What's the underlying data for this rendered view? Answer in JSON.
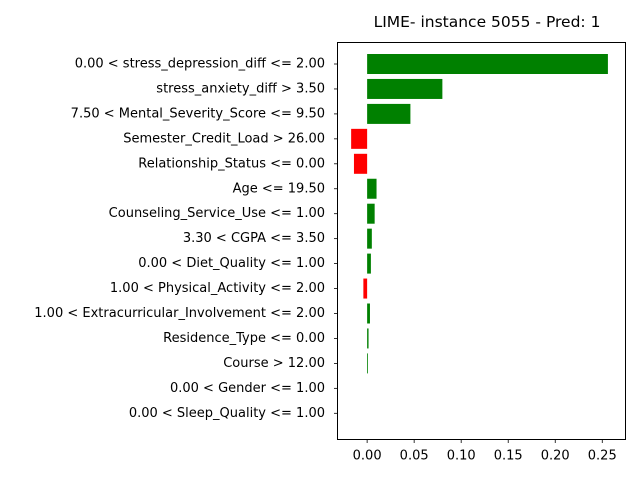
{
  "chart_data": {
    "type": "bar",
    "orientation": "horizontal",
    "title": "LIME- instance 5055 - Pred: 1",
    "xlabel": "",
    "ylabel": "",
    "xlim": [
      -0.0315,
      0.2747
    ],
    "x_ticks": [
      0.0,
      0.05,
      0.1,
      0.15,
      0.2,
      0.25
    ],
    "x_tick_labels": [
      "0.00",
      "0.05",
      "0.10",
      "0.15",
      "0.20",
      "0.25"
    ],
    "grid": false,
    "legend": "none",
    "categories": [
      "0.00 < stress_depression_diff <= 2.00",
      "stress_anxiety_diff > 3.50",
      "7.50 < Mental_Severity_Score <= 9.50",
      "Semester_Credit_Load > 26.00",
      "Relationship_Status <= 0.00",
      "Age <= 19.50",
      "Counseling_Service_Use <= 1.00",
      "3.30 < CGPA <= 3.50",
      "0.00 < Diet_Quality <= 1.00",
      "1.00 < Physical_Activity <= 2.00",
      "1.00 < Extracurricular_Involvement <= 2.00",
      "Residence_Type <= 0.00",
      "Course > 12.00",
      "0.00 < Gender <= 1.00",
      "0.00 < Sleep_Quality <= 1.00"
    ],
    "values": [
      0.256,
      0.08,
      0.046,
      -0.017,
      -0.014,
      0.01,
      0.008,
      0.005,
      0.004,
      -0.004,
      0.003,
      0.0015,
      0.0008,
      0.0,
      0.0
    ],
    "colors": {
      "positive": "#008000",
      "negative": "#ff0000",
      "axis": "#000000"
    }
  }
}
